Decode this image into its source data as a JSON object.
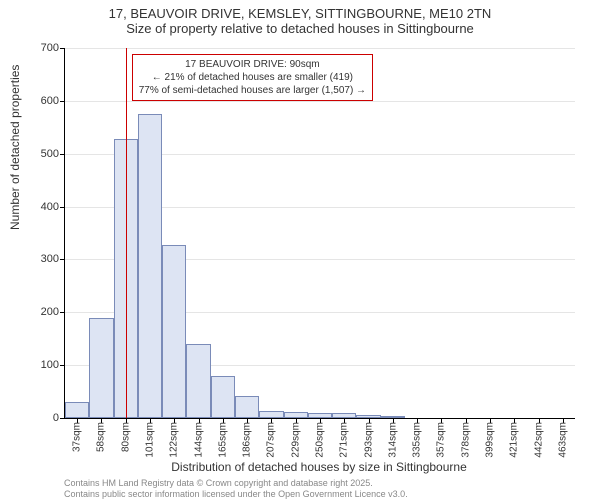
{
  "title_main": "17, BEAUVOIR DRIVE, KEMSLEY, SITTINGBOURNE, ME10 2TN",
  "title_sub": "Size of property relative to detached houses in Sittingbourne",
  "y_axis_label": "Number of detached properties",
  "x_axis_label": "Distribution of detached houses by size in Sittingbourne",
  "chart": {
    "type": "histogram",
    "background_color": "#ffffff",
    "grid_color": "#e5e5e5",
    "bar_fill": "#dde4f3",
    "bar_border": "#7a8bb8",
    "axis_color": "#000000",
    "marker_color": "#cc0000",
    "ylim": [
      0,
      700
    ],
    "y_ticks": [
      0,
      100,
      200,
      300,
      400,
      500,
      600,
      700
    ],
    "x_tick_labels": [
      "37sqm",
      "58sqm",
      "80sqm",
      "101sqm",
      "122sqm",
      "144sqm",
      "165sqm",
      "186sqm",
      "207sqm",
      "229sqm",
      "250sqm",
      "271sqm",
      "293sqm",
      "314sqm",
      "335sqm",
      "357sqm",
      "378sqm",
      "399sqm",
      "421sqm",
      "442sqm",
      "463sqm"
    ],
    "bar_values": [
      30,
      190,
      527,
      575,
      327,
      140,
      80,
      42,
      13,
      12,
      10,
      10,
      6,
      3,
      0,
      0,
      0,
      0,
      0,
      0,
      0
    ],
    "marker": {
      "x_index": 2.5,
      "lines": [
        "17 BEAUVOIR DRIVE: 90sqm",
        "← 21% of detached houses are smaller (419)",
        "77% of semi-detached houses are larger (1,507) →"
      ]
    }
  },
  "attribution": {
    "line1": "Contains HM Land Registry data © Crown copyright and database right 2025.",
    "line2": "Contains public sector information licensed under the Open Government Licence v3.0."
  },
  "fonts": {
    "title_size_pt": 13,
    "axis_label_size_pt": 12,
    "tick_size_pt": 11,
    "callout_size_pt": 10,
    "attribution_size_pt": 9
  }
}
